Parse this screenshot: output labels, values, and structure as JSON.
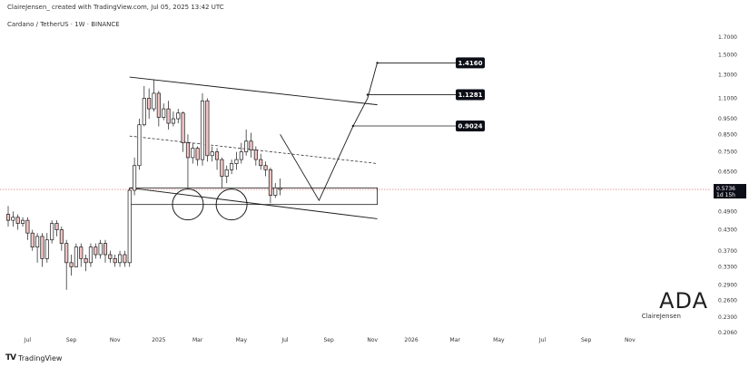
{
  "header": {
    "attribution": "ClaireJensen_ created with TradingView.com, Jul 05, 2025 13:42 UTC",
    "symbol": "Cardano / TetherUS · 1W · BINANCE"
  },
  "brand": {
    "ticker": "ADA",
    "author": "ClaireJensen"
  },
  "footer": {
    "logo_mark": "TV",
    "logo_text": "TradingView"
  },
  "colors": {
    "up": "#ffffff",
    "down": "#f2c4c4",
    "outline": "#1a1a1a",
    "dotted_price": "#e06060",
    "target_label_bg": "#0b0e17"
  },
  "chart_data": {
    "type": "candlestick",
    "title": "Cardano / TetherUS · 1W · BINANCE",
    "y_scale": "log",
    "ylim": [
      0.205,
      1.9
    ],
    "y_ticks": [
      "1.7000",
      "1.5000",
      "1.3000",
      "1.1000",
      "0.9500",
      "0.8500",
      "0.7500",
      "0.6500",
      "0.5736",
      "0.4900",
      "0.4300",
      "0.3700",
      "0.3300",
      "0.2900",
      "0.2600",
      "0.2300",
      "0.2060"
    ],
    "x_ticks": [
      {
        "label": "Jul",
        "week": 4
      },
      {
        "label": "Sep",
        "week": 13
      },
      {
        "label": "Nov",
        "week": 22
      },
      {
        "label": "2025",
        "week": 31
      },
      {
        "label": "Mar",
        "week": 39
      },
      {
        "label": "May",
        "week": 48
      },
      {
        "label": "Jul",
        "week": 57
      },
      {
        "label": "Sep",
        "week": 66
      },
      {
        "label": "Nov",
        "week": 75
      },
      {
        "label": "2026",
        "week": 83
      },
      {
        "label": "Mar",
        "week": 92
      },
      {
        "label": "May",
        "week": 101
      },
      {
        "label": "Jul",
        "week": 110
      },
      {
        "label": "Sep",
        "week": 119
      },
      {
        "label": "Nov",
        "week": 128
      }
    ],
    "candles": [
      [
        0.48,
        0.46,
        0.51,
        0.44
      ],
      [
        0.46,
        0.47,
        0.49,
        0.44
      ],
      [
        0.47,
        0.45,
        0.48,
        0.43
      ],
      [
        0.45,
        0.46,
        0.47,
        0.44
      ],
      [
        0.46,
        0.42,
        0.47,
        0.4
      ],
      [
        0.42,
        0.38,
        0.43,
        0.37
      ],
      [
        0.38,
        0.41,
        0.42,
        0.34
      ],
      [
        0.41,
        0.35,
        0.42,
        0.33
      ],
      [
        0.35,
        0.4,
        0.42,
        0.34
      ],
      [
        0.4,
        0.45,
        0.46,
        0.39
      ],
      [
        0.45,
        0.43,
        0.46,
        0.41
      ],
      [
        0.43,
        0.39,
        0.44,
        0.37
      ],
      [
        0.39,
        0.34,
        0.4,
        0.28
      ],
      [
        0.34,
        0.33,
        0.36,
        0.31
      ],
      [
        0.33,
        0.38,
        0.39,
        0.33
      ],
      [
        0.38,
        0.35,
        0.39,
        0.33
      ],
      [
        0.35,
        0.34,
        0.36,
        0.32
      ],
      [
        0.34,
        0.38,
        0.39,
        0.33
      ],
      [
        0.38,
        0.36,
        0.39,
        0.35
      ],
      [
        0.36,
        0.39,
        0.4,
        0.35
      ],
      [
        0.39,
        0.36,
        0.4,
        0.34
      ],
      [
        0.36,
        0.35,
        0.37,
        0.34
      ],
      [
        0.35,
        0.34,
        0.36,
        0.33
      ],
      [
        0.34,
        0.36,
        0.37,
        0.33
      ],
      [
        0.36,
        0.34,
        0.37,
        0.33
      ],
      [
        0.34,
        0.57,
        0.58,
        0.33
      ],
      [
        0.57,
        0.68,
        0.72,
        0.55
      ],
      [
        0.68,
        0.91,
        0.95,
        0.66
      ],
      [
        0.91,
        1.1,
        1.2,
        0.9
      ],
      [
        1.1,
        1.02,
        1.18,
        0.95
      ],
      [
        1.02,
        1.14,
        1.26,
        1.0
      ],
      [
        1.14,
        0.96,
        1.16,
        0.9
      ],
      [
        0.96,
        1.02,
        1.06,
        0.94
      ],
      [
        1.02,
        0.92,
        1.08,
        0.88
      ],
      [
        0.92,
        0.95,
        1.0,
        0.9
      ],
      [
        0.95,
        0.99,
        1.02,
        0.92
      ],
      [
        0.99,
        0.8,
        1.0,
        0.75
      ],
      [
        0.8,
        0.72,
        0.85,
        0.58
      ],
      [
        0.72,
        0.77,
        0.8,
        0.69
      ],
      [
        0.77,
        0.71,
        0.78,
        0.68
      ],
      [
        0.71,
        1.08,
        1.14,
        0.68
      ],
      [
        1.08,
        0.73,
        1.1,
        0.7
      ],
      [
        0.73,
        0.75,
        0.78,
        0.7
      ],
      [
        0.75,
        0.71,
        0.77,
        0.66
      ],
      [
        0.71,
        0.63,
        0.72,
        0.58
      ],
      [
        0.63,
        0.66,
        0.68,
        0.6
      ],
      [
        0.66,
        0.69,
        0.71,
        0.64
      ],
      [
        0.69,
        0.71,
        0.75,
        0.66
      ],
      [
        0.71,
        0.75,
        0.8,
        0.69
      ],
      [
        0.75,
        0.81,
        0.88,
        0.73
      ],
      [
        0.81,
        0.76,
        0.86,
        0.72
      ],
      [
        0.76,
        0.71,
        0.78,
        0.68
      ],
      [
        0.71,
        0.68,
        0.74,
        0.66
      ],
      [
        0.68,
        0.66,
        0.7,
        0.63
      ],
      [
        0.66,
        0.55,
        0.67,
        0.52
      ],
      [
        0.55,
        0.58,
        0.6,
        0.54
      ],
      [
        0.58,
        0.5736,
        0.62,
        0.55
      ]
    ],
    "support_zone": {
      "top": 0.58,
      "bottom": 0.515,
      "from_week": 25,
      "to_week": 76
    },
    "double_bottom_circles_weeks": [
      37,
      46
    ],
    "channel_upper": [
      [
        25,
        1.28
      ],
      [
        76,
        1.05
      ]
    ],
    "channel_lower": [
      [
        25,
        0.58
      ],
      [
        76,
        0.465
      ]
    ],
    "channel_mid": [
      [
        25,
        0.84
      ],
      [
        76,
        0.69
      ]
    ],
    "projection_path": [
      [
        56,
        0.85
      ],
      [
        64,
        0.53
      ],
      [
        71,
        0.9
      ],
      [
        74,
        1.1
      ],
      [
        76,
        1.42
      ]
    ],
    "targets": [
      {
        "label": "1.4160",
        "value": 1.416,
        "from_week": 76
      },
      {
        "label": "1.1281",
        "value": 1.1281,
        "from_week": 74
      },
      {
        "label": "0.9024",
        "value": 0.9024,
        "from_week": 71
      }
    ],
    "current_price": {
      "value": 0.5736,
      "label": "0.5736",
      "countdown": "1d 15h"
    }
  }
}
